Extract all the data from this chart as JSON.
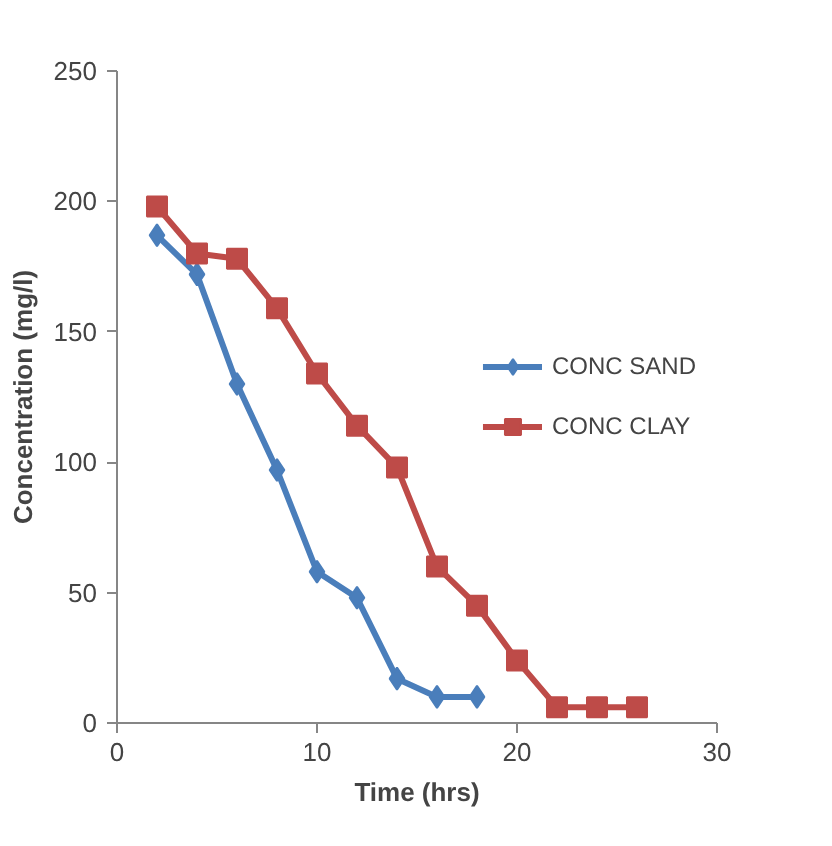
{
  "chart_data": {
    "type": "line",
    "xlabel": "Time (hrs)",
    "ylabel": "Concentration (mg/l)",
    "xlim": [
      0,
      30
    ],
    "xticks": [
      0,
      10,
      20,
      30
    ],
    "ylim": [
      0,
      250
    ],
    "yticks": [
      0,
      50,
      100,
      150,
      200,
      250
    ],
    "grid": false,
    "legend": "right",
    "line_style": "solid",
    "series": [
      {
        "name": "CONC SAND",
        "color": "#4a7ebb",
        "marker": "diamond",
        "x": [
          2,
          4,
          6,
          8,
          10,
          12,
          14,
          16,
          18
        ],
        "values": [
          187,
          172,
          130,
          97,
          58,
          48,
          17,
          10,
          10
        ]
      },
      {
        "name": "CONC CLAY",
        "color": "#be4b48",
        "marker": "square",
        "x": [
          2,
          4,
          6,
          8,
          10,
          12,
          14,
          16,
          18,
          20,
          22,
          24,
          26
        ],
        "values": [
          198,
          180,
          178,
          159,
          134,
          114,
          98,
          60,
          45,
          24,
          6,
          6,
          6
        ]
      }
    ]
  }
}
